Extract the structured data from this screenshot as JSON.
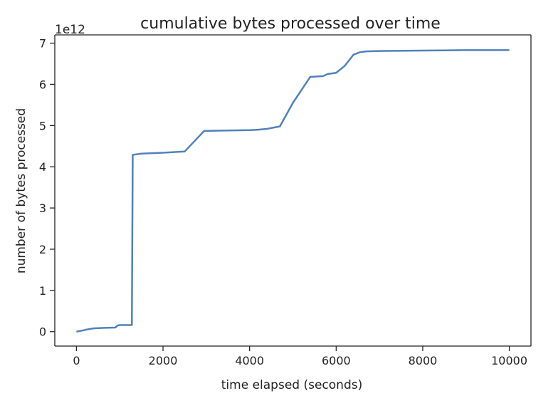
{
  "chart_data": {
    "type": "line",
    "title": "cumulative bytes processed over time",
    "xlabel": "time elapsed (seconds)",
    "ylabel": "number of bytes processed",
    "y_offset_text": "1e12",
    "xlim": [
      -500,
      10500
    ],
    "ylim": [
      -0.35,
      7.2
    ],
    "x_ticks": [
      0,
      2000,
      4000,
      6000,
      8000,
      10000
    ],
    "x_tick_labels": [
      "0",
      "2000",
      "4000",
      "6000",
      "8000",
      "10000"
    ],
    "y_ticks": [
      0,
      1,
      2,
      3,
      4,
      5,
      6,
      7
    ],
    "y_tick_labels": [
      "0",
      "1",
      "2",
      "3",
      "4",
      "5",
      "6",
      "7"
    ],
    "grid": false,
    "series": [
      {
        "color": "#4f81bd",
        "x": [
          0,
          200,
          230,
          400,
          600,
          900,
          950,
          1000,
          1280,
          1300,
          1500,
          2000,
          2500,
          2950,
          3500,
          4000,
          4200,
          4400,
          4700,
          5000,
          5400,
          5700,
          5800,
          6000,
          6200,
          6400,
          6550,
          6700,
          7000,
          8000,
          9000,
          10000
        ],
        "y": [
          0.0,
          0.04,
          0.05,
          0.08,
          0.09,
          0.1,
          0.15,
          0.16,
          0.16,
          4.29,
          4.32,
          4.34,
          4.37,
          4.87,
          4.88,
          4.89,
          4.9,
          4.92,
          4.98,
          5.55,
          6.18,
          6.2,
          6.25,
          6.28,
          6.45,
          6.72,
          6.78,
          6.8,
          6.81,
          6.82,
          6.83,
          6.83
        ]
      }
    ]
  }
}
